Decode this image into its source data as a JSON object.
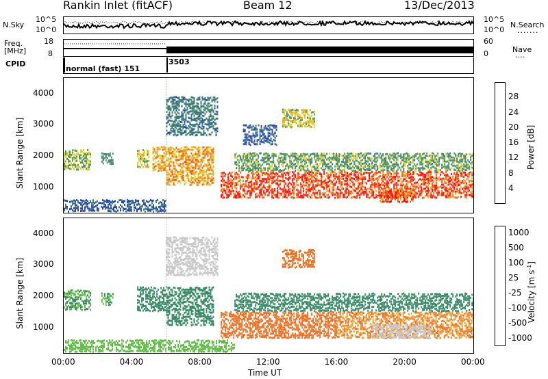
{
  "header": {
    "station_title": "Rankin Inlet (fitACF)",
    "beam_label": "Beam 12",
    "date_label": "13/Dec/2013"
  },
  "top_panels": {
    "noise": {
      "left_label": "N.Sky",
      "right_label": "N.Search",
      "y_tick_top": "10^5",
      "y_tick_bottom": "10^0",
      "right_tick_top": "10^5",
      "right_tick_bottom": "10^0"
    },
    "freq": {
      "left_label_line1": "Freq.",
      "left_label_line2": "[MHz]",
      "right_label": "Nave",
      "y_tick_top": "18",
      "y_tick_bottom": "8",
      "right_tick_top": "60",
      "right_tick_bottom": "0"
    },
    "cpid": {
      "left_label": "CPID",
      "segment_1_label": "normal (fast) 151",
      "segment_2_label": "3503",
      "segment_boundary_hour": 6
    }
  },
  "axes": {
    "ylabel": "Slant Range [km]",
    "xlabel": "Time UT",
    "x_ticks": [
      "00:00",
      "04:00",
      "08:00",
      "12:00",
      "16:00",
      "20:00",
      "00:00"
    ],
    "y_ticks": [
      "1000",
      "2000",
      "3000",
      "4000"
    ]
  },
  "chart_data": [
    {
      "type": "heatmap",
      "name": "power",
      "xlabel": "Time UT",
      "ylabel": "Slant Range [km]",
      "xlim": [
        0,
        24
      ],
      "ylim": [
        180,
        4500
      ],
      "colorbar_label": "Power [dB]",
      "colorbar_ticks": [
        "4",
        "8",
        "12",
        "16",
        "20",
        "24",
        "28"
      ],
      "colorbar_colors": [
        "#1010ff",
        "#2a40c8",
        "#3b7a78",
        "#4e9860",
        "#e0d020",
        "#f0a020",
        "#f06010",
        "#ff1010"
      ],
      "regions": [
        {
          "t0": 0.0,
          "t1": 1.6,
          "r0": 1500,
          "r1": 2200,
          "value": 16
        },
        {
          "t0": 2.2,
          "t1": 2.9,
          "r0": 1700,
          "r1": 2100,
          "value": 12
        },
        {
          "t0": 4.3,
          "t1": 5.0,
          "r0": 1600,
          "r1": 2200,
          "value": 18
        },
        {
          "t0": 5.2,
          "t1": 6.0,
          "r0": 1500,
          "r1": 2300,
          "value": 20
        },
        {
          "t0": 6.0,
          "t1": 8.8,
          "r0": 1000,
          "r1": 2300,
          "value": 22
        },
        {
          "t0": 9.2,
          "t1": 24.0,
          "r0": 600,
          "r1": 1500,
          "value": 28
        },
        {
          "t0": 10.0,
          "t1": 24.0,
          "r0": 1500,
          "r1": 2100,
          "value": 14
        },
        {
          "t0": 12.8,
          "t1": 14.7,
          "r0": 2900,
          "r1": 3500,
          "value": 18
        },
        {
          "t0": 10.5,
          "t1": 12.5,
          "r0": 2300,
          "r1": 3000,
          "value": 8
        },
        {
          "t0": 0.0,
          "t1": 6.0,
          "r0": 200,
          "r1": 600,
          "value": 8
        },
        {
          "t0": 6.0,
          "t1": 9.0,
          "r0": 2600,
          "r1": 3900,
          "value": 10
        },
        {
          "t0": 18.5,
          "t1": 20.5,
          "r0": 500,
          "r1": 900,
          "value": 26
        }
      ]
    },
    {
      "type": "heatmap",
      "name": "velocity",
      "xlabel": "Time UT",
      "ylabel": "Slant Range [km]",
      "xlim": [
        0,
        24
      ],
      "ylim": [
        180,
        4500
      ],
      "colorbar_label": "Velocity [m s^-1]",
      "colorbar_ticks": [
        "1000",
        "500",
        "100",
        "25",
        "-25",
        "-100",
        "-500",
        "-1000"
      ],
      "colorbar_colors": [
        "#1840c0",
        "#2e6ea0",
        "#3a8a68",
        "#5cc040",
        "#c8c8c8",
        "#f0a030",
        "#f07020",
        "#ff1010"
      ],
      "regions": [
        {
          "t0": 0.0,
          "t1": 1.6,
          "r0": 1500,
          "r1": 2200,
          "value": 100
        },
        {
          "t0": 2.2,
          "t1": 2.9,
          "r0": 1700,
          "r1": 2100,
          "value": 100
        },
        {
          "t0": 4.3,
          "t1": 6.0,
          "r0": 1500,
          "r1": 2300,
          "value": 300
        },
        {
          "t0": 6.0,
          "t1": 8.8,
          "r0": 1000,
          "r1": 2300,
          "value": 300
        },
        {
          "t0": 9.2,
          "t1": 16.0,
          "r0": 600,
          "r1": 1500,
          "value": -300
        },
        {
          "t0": 16.0,
          "t1": 24.0,
          "r0": 600,
          "r1": 1500,
          "value": -100
        },
        {
          "t0": 18.0,
          "t1": 21.5,
          "r0": 600,
          "r1": 1100,
          "value": 0
        },
        {
          "t0": 10.0,
          "t1": 24.0,
          "r0": 1500,
          "r1": 2100,
          "value": 300
        },
        {
          "t0": 12.8,
          "t1": 14.7,
          "r0": 2900,
          "r1": 3500,
          "value": -300
        },
        {
          "t0": 6.0,
          "t1": 9.0,
          "r0": 2600,
          "r1": 3900,
          "value": 0
        },
        {
          "t0": 0.0,
          "t1": 10.0,
          "r0": 200,
          "r1": 600,
          "value": 50
        }
      ]
    }
  ]
}
